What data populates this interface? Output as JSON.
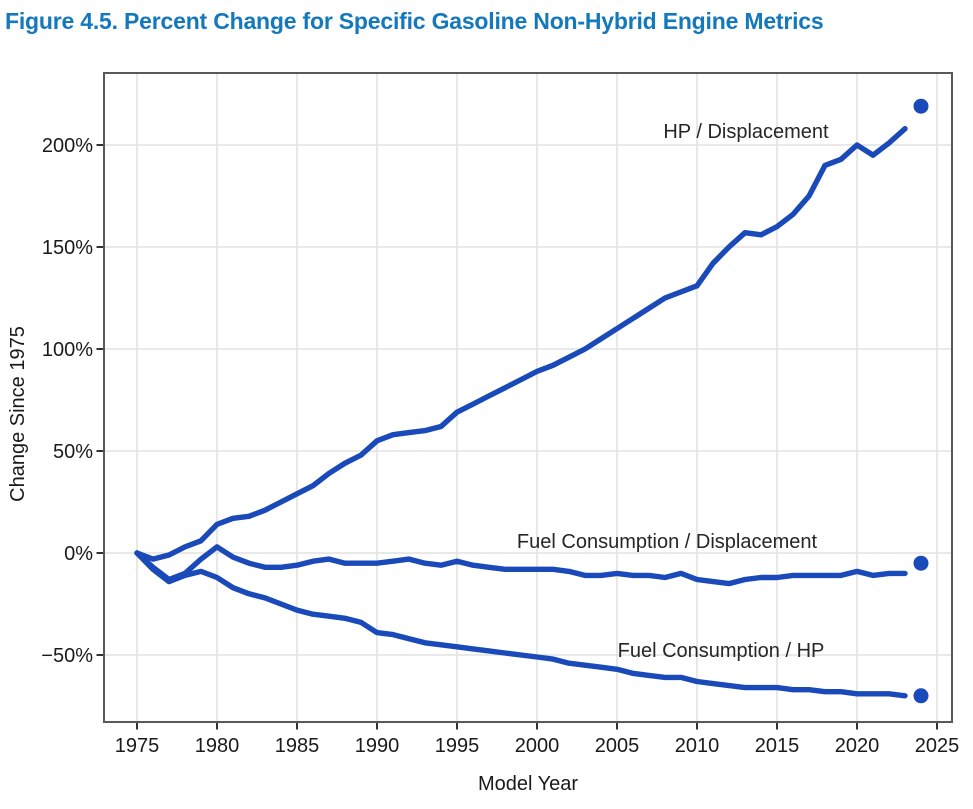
{
  "title": "Figure 4.5. Percent Change for Specific Gasoline Non-Hybrid Engine Metrics",
  "colors": {
    "title_blue": "#1478bd",
    "line_blue": "#1a4ab9",
    "grid": "#e2e2e2",
    "plot_border": "#59595b",
    "tick_mark": "#333333",
    "tick_label": "#1a1a1a",
    "annotation": "#262626",
    "background": "#ffffff"
  },
  "chart_data": {
    "type": "line",
    "title": "Figure 4.5. Percent Change for Specific Gasoline Non-Hybrid Engine Metrics",
    "xlabel": "Model Year",
    "ylabel": "Change Since 1975",
    "grid": true,
    "legend_position": "inline-annotations",
    "xlim": [
      1972.9,
      2025.9
    ],
    "ylim": [
      -83,
      235
    ],
    "x_ticks": [
      1975,
      1980,
      1985,
      1990,
      1995,
      2000,
      2005,
      2010,
      2015,
      2020,
      2025
    ],
    "y_ticks": [
      200,
      150,
      100,
      50,
      0,
      -50
    ],
    "y_tick_labels": [
      "200%",
      "150%",
      "100%",
      "50%",
      "0%",
      "−50%"
    ],
    "years": [
      1975,
      1976,
      1977,
      1978,
      1979,
      1980,
      1981,
      1982,
      1983,
      1984,
      1985,
      1986,
      1987,
      1988,
      1989,
      1990,
      1991,
      1992,
      1993,
      1994,
      1995,
      1996,
      1997,
      1998,
      1999,
      2000,
      2001,
      2002,
      2003,
      2004,
      2005,
      2006,
      2007,
      2008,
      2009,
      2010,
      2011,
      2012,
      2013,
      2014,
      2015,
      2016,
      2017,
      2018,
      2019,
      2020,
      2021,
      2022,
      2023
    ],
    "dot_year": 2024,
    "series": [
      {
        "name": "HP / Displacement",
        "values": [
          0,
          -3,
          -1,
          3,
          6,
          14,
          17,
          18,
          21,
          25,
          29,
          33,
          39,
          44,
          48,
          55,
          58,
          59,
          60,
          62,
          69,
          73,
          77,
          81,
          85,
          89,
          92,
          96,
          100,
          105,
          110,
          115,
          120,
          125,
          128,
          131,
          142,
          150,
          157,
          156,
          160,
          166,
          175,
          190,
          193,
          200,
          195,
          201,
          208
        ],
        "dot_2024": 219
      },
      {
        "name": "Fuel Consumption / Displacement",
        "values": [
          0,
          -7,
          -13,
          -10,
          -3,
          3,
          -2,
          -5,
          -7,
          -7,
          -6,
          -4,
          -3,
          -5,
          -5,
          -5,
          -4,
          -3,
          -5,
          -6,
          -4,
          -6,
          -7,
          -8,
          -8,
          -8,
          -8,
          -9,
          -11,
          -11,
          -10,
          -11,
          -11,
          -12,
          -10,
          -13,
          -14,
          -15,
          -13,
          -12,
          -12,
          -11,
          -11,
          -11,
          -11,
          -9,
          -11,
          -10,
          -10
        ],
        "dot_2024": -5
      },
      {
        "name": "Fuel Consumption / HP",
        "values": [
          0,
          -8,
          -14,
          -11,
          -9,
          -12,
          -17,
          -20,
          -22,
          -25,
          -28,
          -30,
          -31,
          -32,
          -34,
          -39,
          -40,
          -42,
          -44,
          -45,
          -46,
          -47,
          -48,
          -49,
          -50,
          -51,
          -52,
          -54,
          -55,
          -56,
          -57,
          -59,
          -60,
          -61,
          -61,
          -63,
          -64,
          -65,
          -66,
          -66,
          -66,
          -67,
          -67,
          -68,
          -68,
          -69,
          -69,
          -69,
          -70
        ],
        "dot_2024": -70
      }
    ]
  }
}
